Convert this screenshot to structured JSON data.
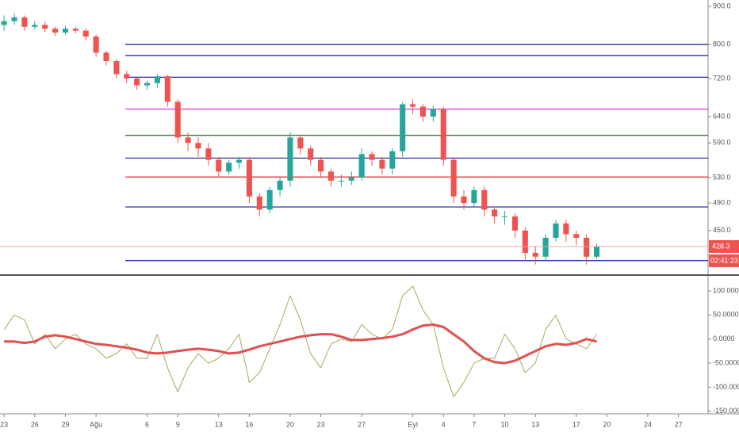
{
  "chart_data": [
    {
      "type": "candlestick",
      "log_scale": true,
      "x": [
        0,
        1,
        2,
        3,
        4,
        5,
        6,
        7,
        8,
        9,
        10,
        11,
        12,
        13,
        14,
        15,
        16,
        17,
        18,
        19,
        20,
        21,
        22,
        23,
        24,
        25,
        26,
        27,
        28,
        29,
        30,
        31,
        32,
        33,
        34,
        35,
        36,
        37,
        38,
        39,
        40,
        41,
        42,
        43,
        44,
        45,
        46,
        47,
        48,
        49,
        50,
        51,
        52,
        53,
        54,
        55,
        56,
        57,
        58
      ],
      "open": [
        850,
        860,
        870,
        845,
        850,
        840,
        830,
        840,
        835,
        820,
        780,
        760,
        730,
        720,
        705,
        710,
        725,
        670,
        600,
        590,
        580,
        560,
        540,
        555,
        560,
        500,
        480,
        510,
        525,
        600,
        580,
        560,
        540,
        525,
        525,
        530,
        570,
        560,
        545,
        575,
        665,
        660,
        640,
        655,
        560,
        500,
        490,
        510,
        480,
        470,
        470,
        450,
        420,
        415,
        440,
        460,
        445,
        440,
        415
      ],
      "high": [
        875,
        880,
        875,
        860,
        858,
        845,
        848,
        845,
        840,
        825,
        785,
        765,
        738,
        725,
        715,
        730,
        728,
        675,
        610,
        600,
        590,
        565,
        560,
        565,
        565,
        505,
        515,
        530,
        610,
        605,
        585,
        565,
        545,
        535,
        540,
        580,
        575,
        565,
        580,
        670,
        675,
        665,
        662,
        660,
        565,
        510,
        515,
        515,
        485,
        478,
        475,
        455,
        428,
        445,
        465,
        465,
        450,
        445,
        432
      ],
      "low": [
        835,
        850,
        835,
        838,
        832,
        822,
        825,
        828,
        810,
        770,
        750,
        720,
        710,
        695,
        695,
        700,
        660,
        590,
        575,
        565,
        550,
        530,
        535,
        545,
        490,
        470,
        475,
        500,
        515,
        570,
        550,
        530,
        515,
        515,
        518,
        525,
        550,
        535,
        535,
        565,
        645,
        630,
        630,
        550,
        490,
        480,
        485,
        470,
        460,
        458,
        440,
        410,
        405,
        410,
        435,
        435,
        430,
        405,
        412
      ],
      "close": [
        860,
        870,
        845,
        850,
        840,
        830,
        840,
        835,
        820,
        780,
        760,
        730,
        720,
        705,
        710,
        725,
        670,
        600,
        590,
        580,
        560,
        540,
        555,
        560,
        500,
        480,
        510,
        525,
        600,
        580,
        560,
        540,
        525,
        525,
        530,
        570,
        560,
        545,
        575,
        665,
        660,
        640,
        655,
        560,
        500,
        490,
        510,
        480,
        470,
        470,
        450,
        420,
        415,
        440,
        460,
        445,
        440,
        415,
        428.3
      ],
      "up_color": "#26a69a",
      "down_color": "#ef5350",
      "ylim": [
        394,
        918
      ],
      "yticks": [
        {
          "value": 900,
          "label": "900.0"
        },
        {
          "value": 800,
          "label": "800.0"
        },
        {
          "value": 720,
          "label": "720.0"
        },
        {
          "value": 640,
          "label": "640.0"
        },
        {
          "value": 590,
          "label": "590.0"
        },
        {
          "value": 530,
          "label": "530.0"
        },
        {
          "value": 490,
          "label": "490.0"
        },
        {
          "value": 450,
          "label": "450.0"
        }
      ],
      "hlines": [
        {
          "value": 800,
          "color": "#1a1aa0"
        },
        {
          "value": 773,
          "color": "#1a1aa0"
        },
        {
          "value": 723,
          "color": "#1a1aa0"
        },
        {
          "value": 655,
          "color": "#d81ad8"
        },
        {
          "value": 604,
          "color": "#2e5a1e"
        },
        {
          "value": 563,
          "color": "#1a1aa0"
        },
        {
          "value": 531,
          "color": "#e02020"
        },
        {
          "value": 484,
          "color": "#1a1aa0"
        },
        {
          "value": 410,
          "color": "#1a1aa0"
        }
      ],
      "countdown": "02:41:23",
      "xlim": [
        -0.4,
        68.9
      ],
      "xticks": [
        {
          "value": 0,
          "label": "23"
        },
        {
          "value": 3,
          "label": "26"
        },
        {
          "value": 6,
          "label": "29"
        },
        {
          "value": 9,
          "label": "Ağu"
        },
        {
          "value": 14,
          "label": "6"
        },
        {
          "value": 17,
          "label": "9"
        },
        {
          "value": 21,
          "label": "13"
        },
        {
          "value": 24,
          "label": "16"
        },
        {
          "value": 28,
          "label": "20"
        },
        {
          "value": 31,
          "label": "23"
        },
        {
          "value": 35,
          "label": "27"
        },
        {
          "value": 40,
          "label": "Eyl"
        },
        {
          "value": 43,
          "label": "4"
        },
        {
          "value": 46,
          "label": "7"
        },
        {
          "value": 49,
          "label": "10"
        },
        {
          "value": 52,
          "label": "13"
        },
        {
          "value": 56,
          "label": "17"
        },
        {
          "value": 59,
          "label": "20"
        },
        {
          "value": 63,
          "label": "24"
        },
        {
          "value": 66,
          "label": "27"
        }
      ]
    },
    {
      "type": "line",
      "x": [
        0,
        1,
        2,
        3,
        4,
        5,
        6,
        7,
        8,
        9,
        10,
        11,
        12,
        13,
        14,
        15,
        16,
        17,
        18,
        19,
        20,
        21,
        22,
        23,
        24,
        25,
        26,
        27,
        28,
        29,
        30,
        31,
        32,
        33,
        34,
        35,
        36,
        37,
        38,
        39,
        40,
        41,
        42,
        43,
        44,
        45,
        46,
        47,
        48,
        49,
        50,
        51,
        52,
        53,
        54,
        55,
        56,
        57,
        58
      ],
      "xlim": [
        -0.4,
        68.9
      ],
      "series": [
        {
          "color": "#a8a860",
          "width": 1,
          "values": [
            20,
            50,
            40,
            -10,
            10,
            -20,
            0,
            10,
            -10,
            -20,
            -40,
            -30,
            -10,
            -40,
            -40,
            10,
            -60,
            -110,
            -60,
            -30,
            -50,
            -40,
            -20,
            10,
            -90,
            -70,
            -20,
            30,
            90,
            40,
            -30,
            -60,
            -10,
            0,
            -5,
            30,
            10,
            0,
            20,
            90,
            110,
            60,
            30,
            -60,
            -120,
            -90,
            -50,
            -40,
            -40,
            10,
            -20,
            -70,
            -50,
            20,
            50,
            0,
            -10,
            -20,
            10
          ]
        },
        {
          "color": "#e05050",
          "width": 3,
          "values": [
            -5,
            -5,
            -8,
            -5,
            5,
            8,
            5,
            0,
            -5,
            -10,
            -12,
            -15,
            -18,
            -22,
            -28,
            -30,
            -28,
            -25,
            -22,
            -20,
            -22,
            -25,
            -30,
            -28,
            -22,
            -15,
            -10,
            -5,
            0,
            5,
            8,
            10,
            10,
            5,
            -2,
            -2,
            0,
            2,
            5,
            10,
            20,
            28,
            30,
            25,
            10,
            -5,
            -25,
            -40,
            -48,
            -50,
            -45,
            -35,
            -25,
            -15,
            -10,
            -12,
            -8,
            0,
            -5
          ]
        }
      ],
      "ylim": [
        -152,
        128
      ],
      "yticks": [
        {
          "value": 100,
          "label": "100.0000"
        },
        {
          "value": 50,
          "label": "50.0000"
        },
        {
          "value": 0,
          "label": "0.0000"
        },
        {
          "value": -50,
          "label": "-50.0000"
        },
        {
          "value": -100,
          "label": "-100.0000"
        },
        {
          "value": -150,
          "label": "-150.0000"
        }
      ]
    }
  ]
}
